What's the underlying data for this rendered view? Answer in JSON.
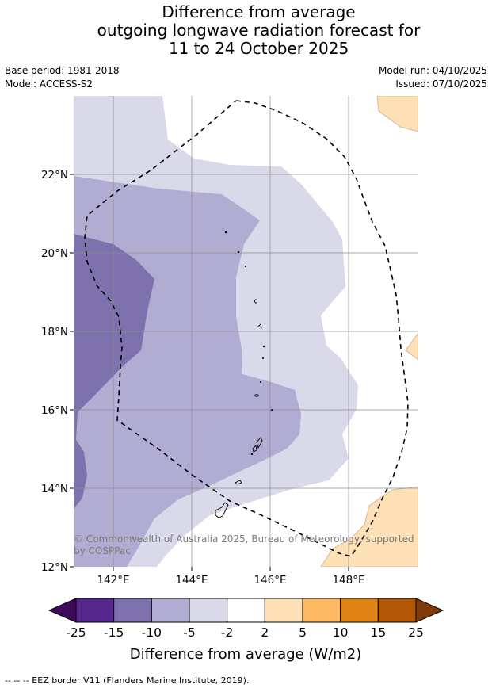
{
  "header": {
    "title_lines": [
      "Difference from average",
      "outgoing longwave radiation forecast for",
      "11 to 24 October 2025"
    ],
    "base_period": "Base period: 1981-2018",
    "model": "Model: ACCESS-S2",
    "model_run": "Model run: 04/10/2025",
    "issued": "Issued: 07/10/2025"
  },
  "map": {
    "lat_ticks": [
      "22°N",
      "20°N",
      "18°N",
      "16°N",
      "14°N",
      "12°N"
    ],
    "lon_ticks": [
      "142°E",
      "144°E",
      "146°E",
      "148°E"
    ],
    "copyright_line1": "© Commonwealth of Australia 2025, Bureau of Meteorology, supported",
    "copyright_line2": "by COSPPac"
  },
  "colorbar": {
    "ticks": [
      "-25",
      "-15",
      "-10",
      "-5",
      "-2",
      "2",
      "5",
      "10",
      "15",
      "25"
    ],
    "label": "Difference from average (W/m2)",
    "colors": [
      "#3f0a5a",
      "#56278d",
      "#7d72ad",
      "#b1acd2",
      "#d9d9ea",
      "#ffffff",
      "#fde0b6",
      "#fdb863",
      "#e08214",
      "#b35806",
      "#7f3b08"
    ]
  },
  "footer": {
    "legend": "--  --  -- EEZ border V11 (Flanders Marine Institute, 2019)."
  }
}
